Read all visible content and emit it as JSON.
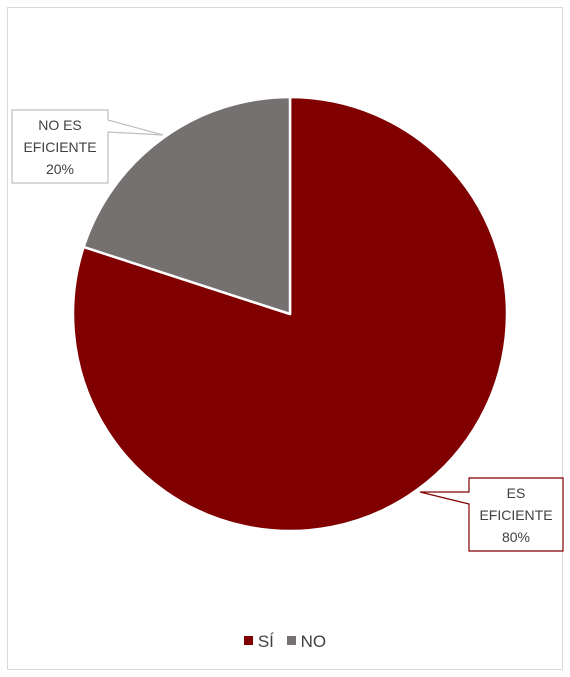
{
  "chart_data": {
    "type": "pie",
    "categories": [
      "SÍ",
      "NO"
    ],
    "values": [
      80,
      20
    ],
    "colors": [
      "#800000",
      "#767171"
    ],
    "start_angle_deg": 0,
    "direction": "clockwise",
    "data_labels": [
      {
        "lines": [
          "ES",
          "EFICIENTE",
          "80%"
        ],
        "border_color": "#800000"
      },
      {
        "lines": [
          "NO ES",
          "EFICIENTE",
          "20%"
        ],
        "border_color": "#bfbfbf"
      }
    ],
    "legend": {
      "position": "bottom",
      "entries": [
        "SÍ",
        "NO"
      ]
    }
  }
}
